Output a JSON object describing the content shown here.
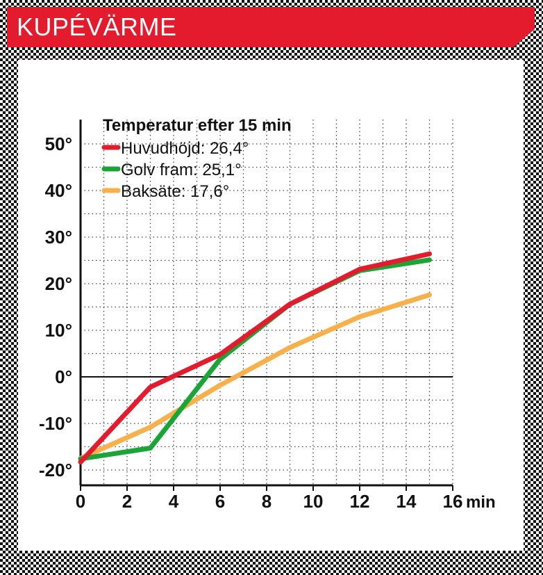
{
  "header": {
    "title": "KUPÉVÄRME",
    "color": "#e31b2c"
  },
  "chart_data": {
    "type": "line",
    "title": "",
    "xlabel": "min",
    "ylabel": "",
    "xlim": [
      0,
      16
    ],
    "ylim": [
      -22,
      54
    ],
    "x_ticks": [
      "0",
      "2",
      "4",
      "6",
      "8",
      "10",
      "12",
      "14",
      "16"
    ],
    "y_ticks": [
      "50°",
      "40°",
      "30°",
      "20°",
      "10°",
      "0°",
      "-10°",
      "-20°"
    ],
    "grid": true,
    "legend": {
      "title": "Temperatur efter 15 min",
      "placement": "top-left"
    },
    "series": [
      {
        "name": "Huvudhöjd: 26,4°",
        "color": "#e31b2c",
        "x": [
          0,
          3,
          6,
          9,
          12,
          15
        ],
        "y": [
          -18.3,
          -2.2,
          4.8,
          15.6,
          23.1,
          26.4
        ]
      },
      {
        "name": "Golv fram: 25,1°",
        "color": "#1aa537",
        "x": [
          0,
          3,
          6,
          9,
          12,
          15
        ],
        "y": [
          -17.6,
          -15.3,
          3.8,
          15.6,
          22.8,
          25.1
        ]
      },
      {
        "name": "Baksäte: 17,6°",
        "color": "#f7b04a",
        "x": [
          0,
          3,
          6,
          9,
          12,
          15
        ],
        "y": [
          -17.5,
          -10.8,
          -1.8,
          6.3,
          12.9,
          17.6
        ]
      }
    ]
  }
}
